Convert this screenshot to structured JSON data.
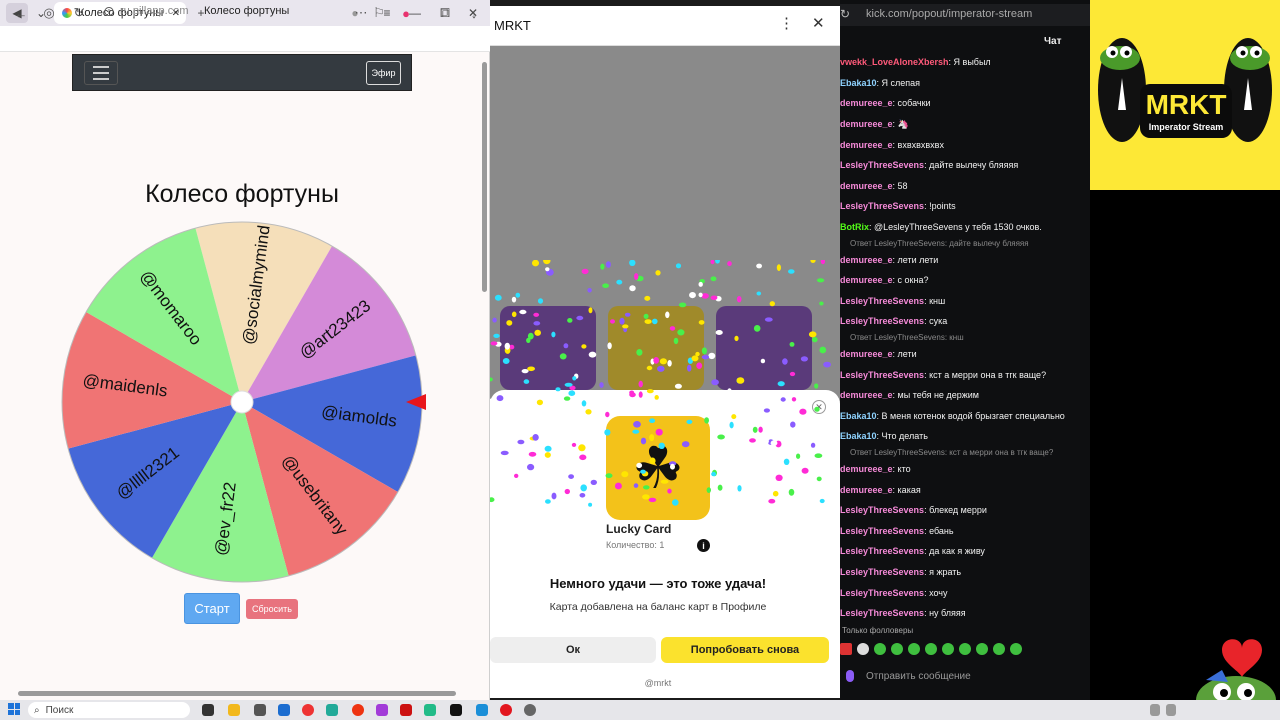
{
  "browser1": {
    "tab_title": "Колесо фортуны",
    "url": "ru.pillapp.com",
    "page_title": "Колесо фортуны"
  },
  "wheel_page": {
    "site_button": "Эфир",
    "title": "Колесо фортуны",
    "segments": [
      {
        "label": "@socialmymind",
        "color": "#f5dfba"
      },
      {
        "label": "@art23423",
        "color": "#d48ad8"
      },
      {
        "label": "@iamolds",
        "color": "#4568d8"
      },
      {
        "label": "@usebritany",
        "color": "#f07474"
      },
      {
        "label": "@ev_fr22",
        "color": "#8ef28e"
      },
      {
        "label": "@lllll2321",
        "color": "#4568d8"
      },
      {
        "label": "@maidenls",
        "color": "#f07474"
      },
      {
        "label": "@momaroo",
        "color": "#8ef28e"
      }
    ],
    "start_label": "Старт",
    "reset_label": "Сбросить"
  },
  "mrkt": {
    "title": "MRKT",
    "card_name": "Lucky Card",
    "card_qty": "Количество: 1",
    "headline": "Немного удачи — это тоже удача!",
    "message": "Карта добавлена на баланс карт в Профиле",
    "ok_label": "Ок",
    "retry_label": "Попробовать снова",
    "handle": "@mrkt"
  },
  "kick": {
    "url": "kick.com/popout/imperator-stream",
    "chat_header": "Чат",
    "followers_only": "Только фолловеры",
    "input_placeholder": "Отправить сообщение",
    "messages": [
      {
        "type": "msg",
        "user": "vwekk_LoveAloneXbersh",
        "color": "#ff5a7a",
        "text": ": Я выбыл"
      },
      {
        "type": "msg",
        "user": "Ebaka10",
        "color": "#8fd3ff",
        "text": ": Я слепая"
      },
      {
        "type": "msg",
        "user": "demureee_e",
        "color": "#f58ad8",
        "text": ": собачки"
      },
      {
        "type": "msg",
        "user": "demureee_e",
        "color": "#f58ad8",
        "text": ": 🦄"
      },
      {
        "type": "msg",
        "user": "demureee_e",
        "color": "#f58ad8",
        "text": ": вхвхвхвхвх"
      },
      {
        "type": "msg",
        "user": "LesleyThreeSevens",
        "color": "#f58ad8",
        "text": ": дайте вылечу бляяяя"
      },
      {
        "type": "msg",
        "user": "demureee_e",
        "color": "#f58ad8",
        "text": ": 58"
      },
      {
        "type": "msg",
        "user": "LesleyThreeSevens",
        "color": "#f58ad8",
        "text": ": !points"
      },
      {
        "type": "msg",
        "user": "BotRix",
        "color": "#53fc18",
        "text": ": @LesleyThreeSevens у тебя 1530 очков."
      },
      {
        "type": "reply",
        "text": "Ответ LesleyThreeSevens: дайте вылечу бляяяя"
      },
      {
        "type": "msg",
        "user": "demureee_e",
        "color": "#f58ad8",
        "text": ": лети лети"
      },
      {
        "type": "msg",
        "user": "demureee_e",
        "color": "#f58ad8",
        "text": ": с окна?"
      },
      {
        "type": "msg",
        "user": "LesleyThreeSevens",
        "color": "#f58ad8",
        "text": ": кнш"
      },
      {
        "type": "msg",
        "user": "LesleyThreeSevens",
        "color": "#f58ad8",
        "text": ": сука"
      },
      {
        "type": "reply",
        "text": "Ответ LesleyThreeSevens: кнш"
      },
      {
        "type": "msg",
        "user": "demureee_e",
        "color": "#f58ad8",
        "text": ": лети"
      },
      {
        "type": "msg",
        "user": "LesleyThreeSevens",
        "color": "#f58ad8",
        "text": ": кст а мерри она в тгк ваще?"
      },
      {
        "type": "msg",
        "user": "demureee_e",
        "color": "#f58ad8",
        "text": ": мы тебя не держим"
      },
      {
        "type": "msg",
        "user": "Ebaka10",
        "color": "#8fd3ff",
        "text": ": В меня котенок водой брызгает специально"
      },
      {
        "type": "msg",
        "user": "Ebaka10",
        "color": "#8fd3ff",
        "text": ": Что делать"
      },
      {
        "type": "reply",
        "text": "Ответ LesleyThreeSevens: кст а мерри она в тгк ваще?"
      },
      {
        "type": "msg",
        "user": "demureee_e",
        "color": "#f58ad8",
        "text": ": кто"
      },
      {
        "type": "msg",
        "user": "demureee_e",
        "color": "#f58ad8",
        "text": ": какая"
      },
      {
        "type": "msg",
        "user": "LesleyThreeSevens",
        "color": "#f58ad8",
        "text": ": блекед мерри"
      },
      {
        "type": "msg",
        "user": "LesleyThreeSevens",
        "color": "#f58ad8",
        "text": ": ебань"
      },
      {
        "type": "msg",
        "user": "LesleyThreeSevens",
        "color": "#f58ad8",
        "text": ": да как я живу"
      },
      {
        "type": "msg",
        "user": "LesleyThreeSevens",
        "color": "#f58ad8",
        "text": ": я жрать"
      },
      {
        "type": "msg",
        "user": "LesleyThreeSevens",
        "color": "#f58ad8",
        "text": ": хочу"
      },
      {
        "type": "msg",
        "user": "LesleyThreeSevens",
        "color": "#f58ad8",
        "text": ": ну бляяя"
      }
    ]
  },
  "stream_logo": {
    "title": "MRKT",
    "subtitle": "Imperator Stream"
  },
  "taskbar": {
    "search_placeholder": "Поиск"
  }
}
